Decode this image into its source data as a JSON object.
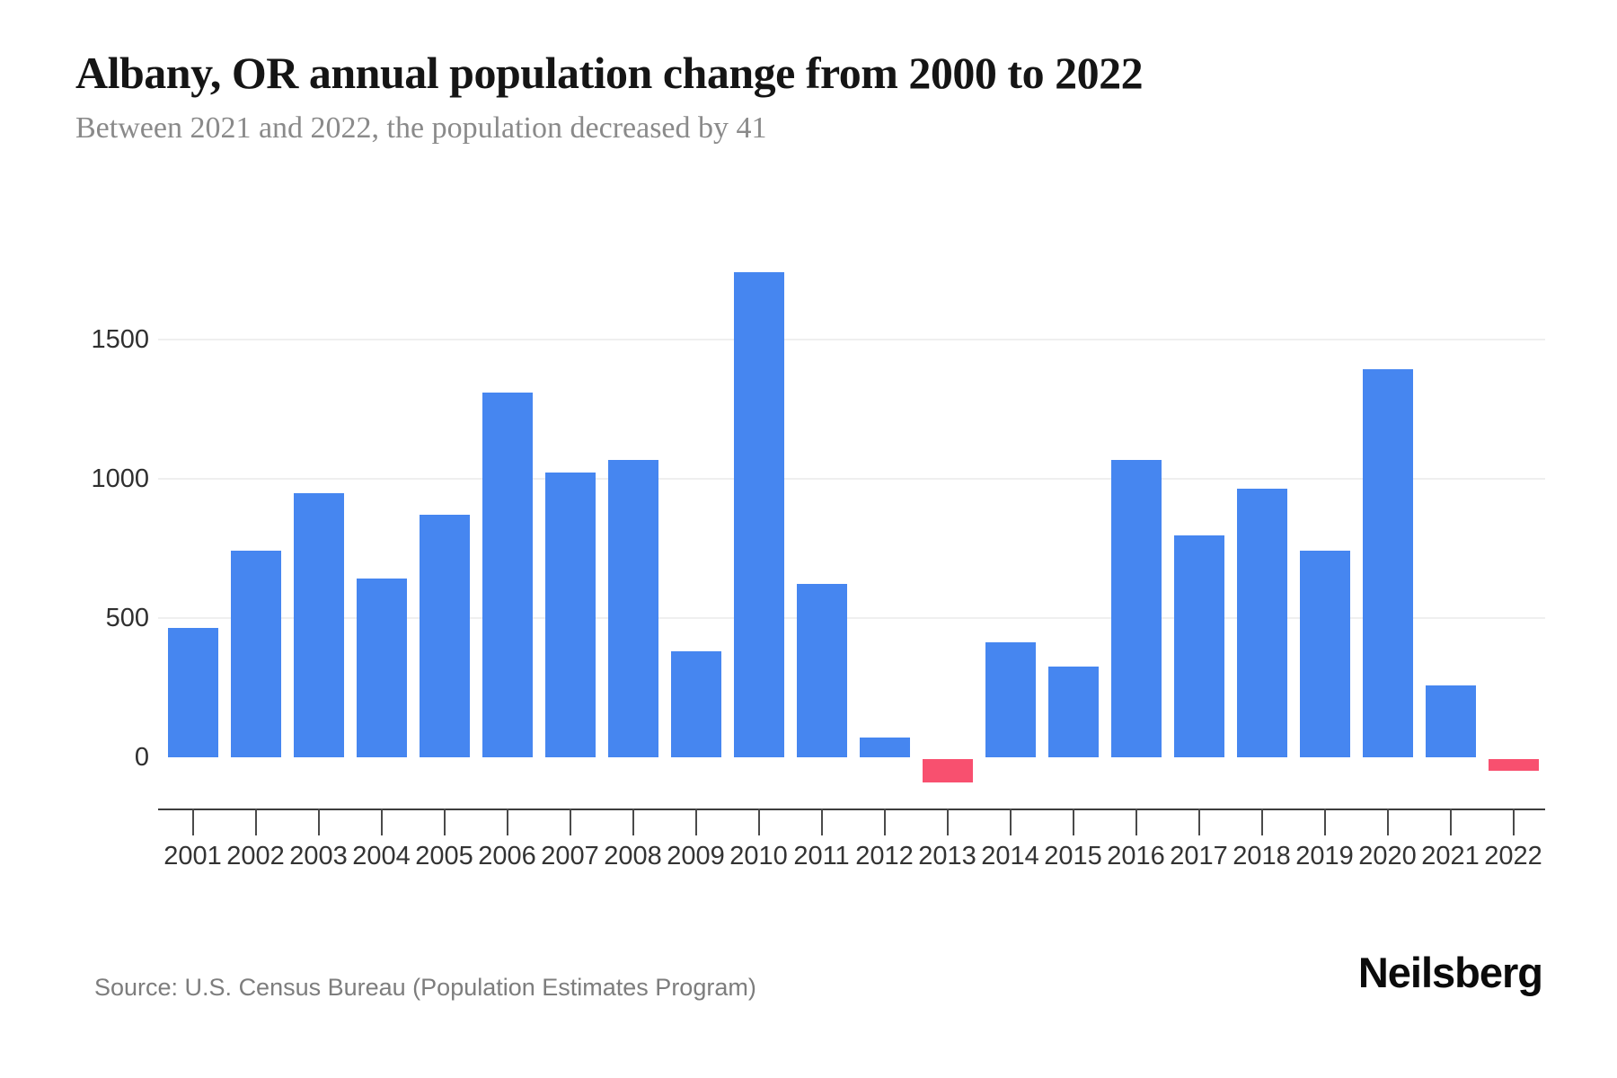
{
  "header": {
    "title": "Albany, OR annual population change from 2000 to 2022",
    "subtitle": "Between 2021 and 2022, the population decreased by 41"
  },
  "footer": {
    "source": "Source: U.S. Census Bureau (Population Estimates Program)",
    "brand": "Neilsberg"
  },
  "colors": {
    "positive_bar": "#4686F0",
    "negative_bar": "#F8506F",
    "gridline": "#efefef",
    "axis": "#3d3d3d",
    "tick_label": "#333333",
    "muted_text": "#8a8a8a"
  },
  "chart_data": {
    "type": "bar",
    "title": "Albany, OR annual population change from 2000 to 2022",
    "subtitle": "Between 2021 and 2022, the population decreased by 41",
    "xlabel": "",
    "ylabel": "",
    "categories": [
      "2001",
      "2002",
      "2003",
      "2004",
      "2005",
      "2006",
      "2007",
      "2008",
      "2009",
      "2010",
      "2011",
      "2012",
      "2013",
      "2014",
      "2015",
      "2016",
      "2017",
      "2018",
      "2019",
      "2020",
      "2021",
      "2022"
    ],
    "values": [
      466,
      742,
      949,
      641,
      872,
      1310,
      1022,
      1068,
      380,
      1742,
      624,
      71,
      -85,
      414,
      325,
      1068,
      798,
      965,
      743,
      1394,
      259,
      -41
    ],
    "yticks": [
      0,
      500,
      1000,
      1500
    ],
    "ylim": [
      -200,
      1900
    ],
    "grid": true,
    "legend": false
  }
}
